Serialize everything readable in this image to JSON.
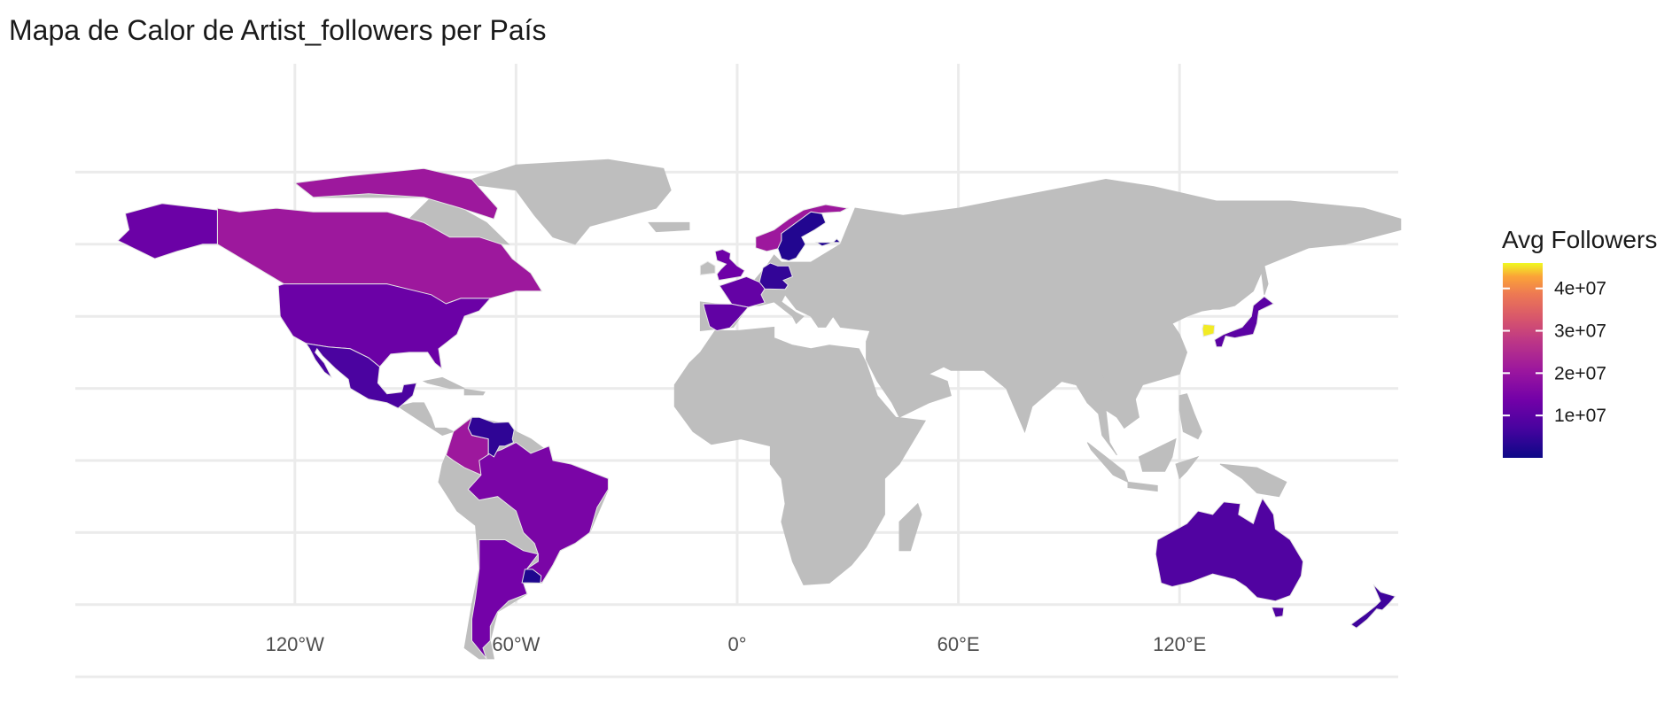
{
  "chart_data": {
    "type": "choropleth",
    "title": "Mapa de Calor de Artist_followers per País",
    "xlabel": "",
    "ylabel": "",
    "x_axis": {
      "ticks": [
        {
          "value": -120,
          "label": "120°W"
        },
        {
          "value": -60,
          "label": "60°W"
        },
        {
          "value": 0,
          "label": "0°"
        },
        {
          "value": 60,
          "label": "60°E"
        },
        {
          "value": 120,
          "label": "120°E"
        }
      ],
      "range": [
        -180,
        180
      ]
    },
    "y_axis": {
      "gridlines": [
        80,
        60,
        40,
        20,
        0,
        -20,
        -40,
        -60
      ],
      "range": [
        -60,
        84
      ]
    },
    "legend": {
      "title": "Avg Followers",
      "palette": "plasma",
      "domain": [
        0,
        46000000
      ],
      "ticks": [
        {
          "value": 10000000,
          "label": "1e+07"
        },
        {
          "value": 20000000,
          "label": "2e+07"
        },
        {
          "value": 30000000,
          "label": "3e+07"
        },
        {
          "value": 40000000,
          "label": "4e+07"
        }
      ],
      "placement": "right"
    },
    "no_data_color": "#bebebe",
    "countries": [
      {
        "name": "South Korea",
        "value": 45500000
      },
      {
        "name": "Canada",
        "value": 21000000
      },
      {
        "name": "Colombia",
        "value": 21000000
      },
      {
        "name": "Norway",
        "value": 21000000
      },
      {
        "name": "Brazil",
        "value": 15000000
      },
      {
        "name": "Argentina",
        "value": 14000000
      },
      {
        "name": "United Kingdom",
        "value": 13000000
      },
      {
        "name": "United States",
        "value": 12500000
      },
      {
        "name": "France",
        "value": 11500000
      },
      {
        "name": "Spain",
        "value": 11000000
      },
      {
        "name": "Japan",
        "value": 10000000
      },
      {
        "name": "Australia",
        "value": 8500000
      },
      {
        "name": "Mexico",
        "value": 7500000
      },
      {
        "name": "New Zealand",
        "value": 6000000
      },
      {
        "name": "Germany",
        "value": 4500000
      },
      {
        "name": "Venezuela",
        "value": 4000000
      },
      {
        "name": "Sweden",
        "value": 2500000
      },
      {
        "name": "Finland",
        "value": 2500000
      },
      {
        "name": "Uruguay",
        "value": 2000000
      }
    ]
  }
}
